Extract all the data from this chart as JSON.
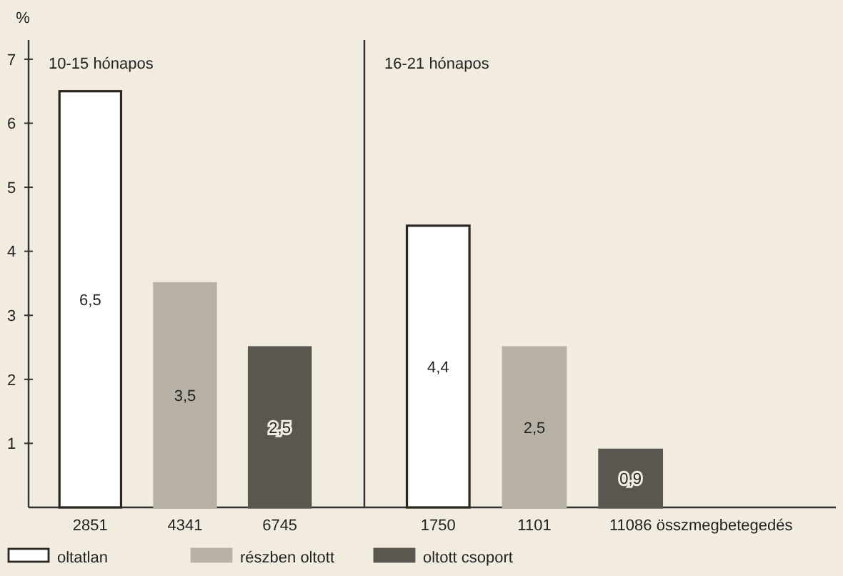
{
  "chart_data": [
    {
      "type": "bar",
      "title": "10-15 hónapos",
      "ylabel": "%",
      "categories": [
        "2851",
        "4341",
        "6745"
      ],
      "ylim": [
        0,
        7.3
      ],
      "yticks": [
        1,
        2,
        3,
        4,
        5,
        6,
        7
      ],
      "legend": "bottom",
      "grid": false,
      "series": [
        {
          "name": "oltatlan",
          "color": "#ffffff",
          "values": [
            6.5,
            null,
            null
          ],
          "value_labels": [
            "6,5",
            null,
            null
          ]
        },
        {
          "name": "részben oltott",
          "color": "#b8b2a6",
          "values": [
            null,
            3.5,
            null
          ],
          "value_labels": [
            null,
            "3,5",
            null
          ]
        },
        {
          "name": "oltott csoport",
          "color": "#5a5650",
          "values": [
            null,
            null,
            2.5
          ],
          "value_labels": [
            null,
            null,
            "2,5"
          ]
        }
      ]
    },
    {
      "type": "bar",
      "title": "16-21 hónapos",
      "xlabel": "összmegbetegedés",
      "categories": [
        "1750",
        "1101",
        "11086"
      ],
      "tick_labels": "x",
      "grid": false,
      "series": [
        {
          "color": "#ffffff",
          "values": [
            4.4,
            null,
            null
          ],
          "value_labels": [
            "4,4",
            null,
            null
          ]
        },
        {
          "color": "#b8b2a6",
          "values": [
            null,
            2.5,
            null
          ],
          "value_labels": [
            null,
            "2,5",
            null
          ]
        },
        {
          "color": "#5a5650",
          "values": [
            null,
            null,
            0.9
          ],
          "value_labels": [
            null,
            null,
            "0,9"
          ]
        }
      ]
    }
  ]
}
